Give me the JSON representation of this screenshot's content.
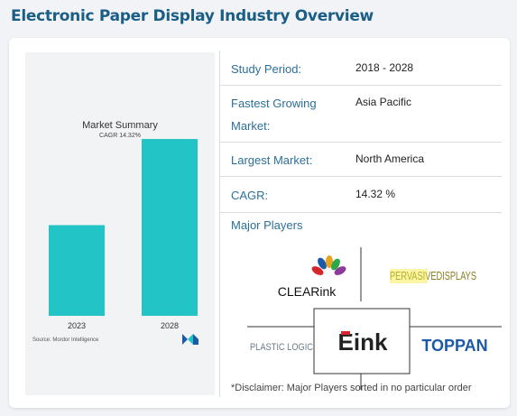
{
  "page": {
    "title": "Electronic Paper Display Industry Overview"
  },
  "chart": {
    "title": "Market Summary",
    "subtitle": "CAGR 14.32%",
    "source": "Source: Mordor Intelligence",
    "bar_color": "#22c4c6"
  },
  "chart_data": {
    "type": "bar",
    "categories": [
      "2023",
      "2028"
    ],
    "values": [
      1,
      1.95
    ],
    "title": "Market Summary",
    "subtitle": "CAGR 14.32%",
    "xlabel": "",
    "ylabel": "",
    "grid": false
  },
  "overview": {
    "rows": [
      {
        "label": "Study Period:",
        "value": "2018 - 2028"
      },
      {
        "label": "Fastest Growing",
        "label2": "Market:",
        "value": "Asia Pacific"
      },
      {
        "label": "Largest Market:",
        "value": "North America"
      },
      {
        "label": "CAGR:",
        "value": "14.32 %"
      }
    ],
    "major_players_label": "Major Players",
    "disclaimer": "*Disclaimer: Major Players sorted in no particular order"
  },
  "players": [
    {
      "name": "CLEARink",
      "text": "CLEARink"
    },
    {
      "name": "Pervasive Displays",
      "text": "PERVASIVEDISPLAYS"
    },
    {
      "name": "Plastic Logic",
      "text": "PLASTIC LOGIC"
    },
    {
      "name": "E Ink",
      "text": "Eink"
    },
    {
      "name": "Toppan",
      "text": "TOPPAN"
    }
  ],
  "colors": {
    "heading": "#1a5e86",
    "label": "#2b6f99",
    "bar": "#22c4c6",
    "eink_red": "#d6262b",
    "toppan": "#1c5aa6"
  }
}
